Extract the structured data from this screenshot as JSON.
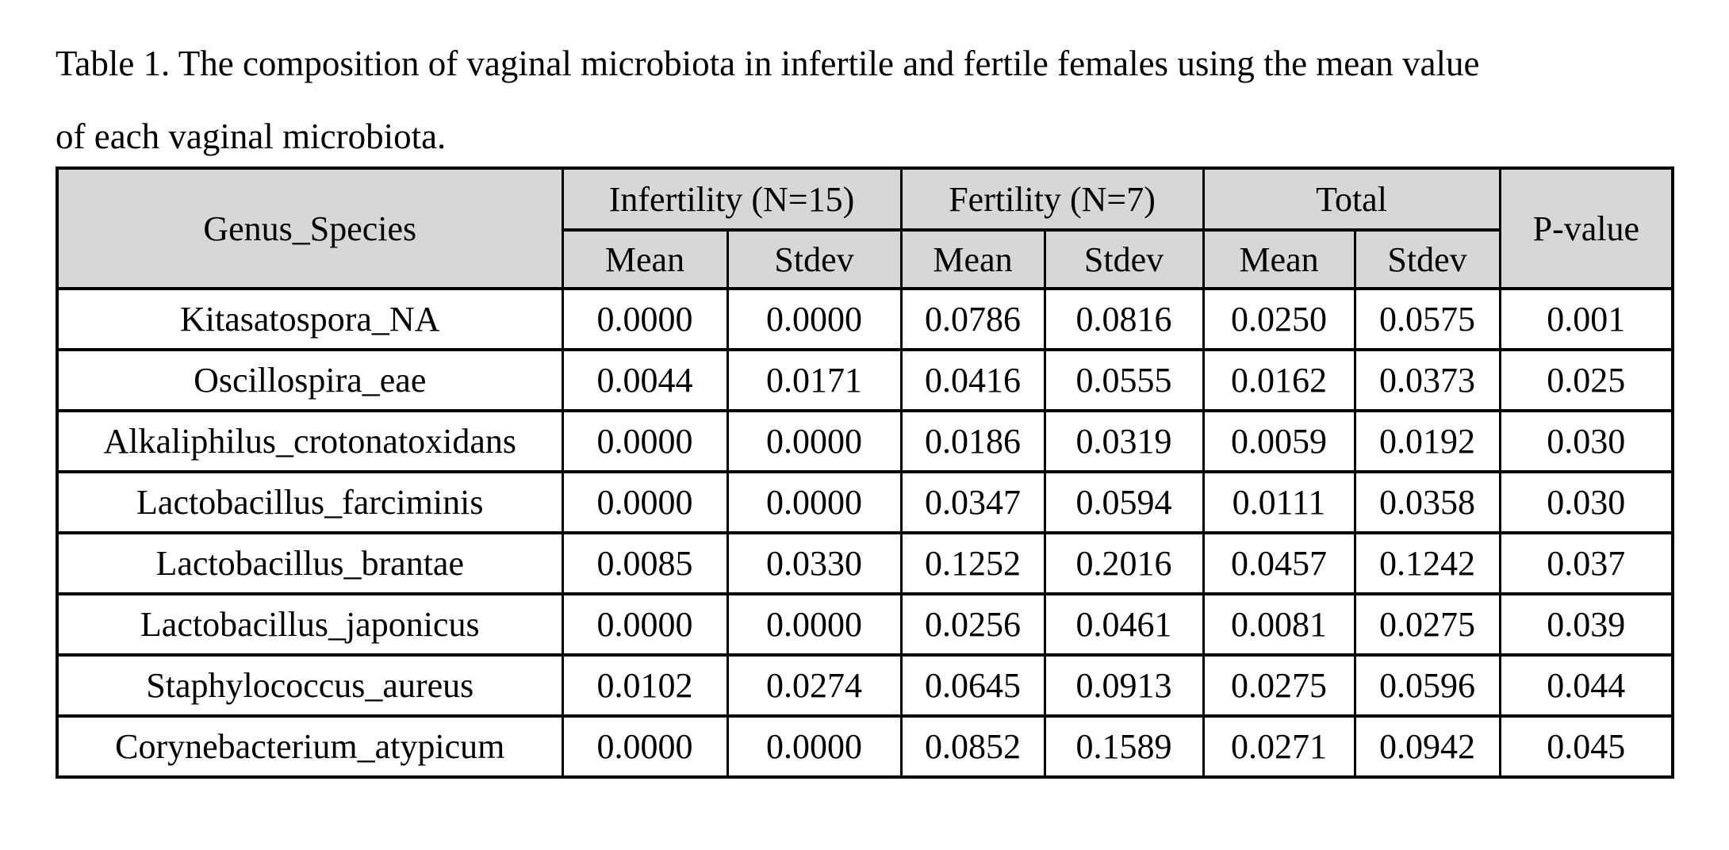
{
  "caption": {
    "line1": "Table 1. The composition of vaginal microbiota in infertile and fertile females using the mean value",
    "line2": "of each vaginal microbiota."
  },
  "table": {
    "corner_header": "Genus_Species",
    "col_groups": [
      {
        "label": "Infertility (N=15)"
      },
      {
        "label": "Fertility (N=7)"
      },
      {
        "label": "Total"
      }
    ],
    "sub_headers": [
      "Mean",
      "Stdev",
      "Mean",
      "Stdev",
      "Mean",
      "Stdev"
    ],
    "p_value_header": "P-value",
    "rows": [
      {
        "species": "Kitasatospora_NA",
        "values": [
          "0.0000",
          "0.0000",
          "0.0786",
          "0.0816",
          "0.0250",
          "0.0575",
          "0.001"
        ]
      },
      {
        "species": "Oscillospira_eae",
        "values": [
          "0.0044",
          "0.0171",
          "0.0416",
          "0.0555",
          "0.0162",
          "0.0373",
          "0.025"
        ]
      },
      {
        "species": "Alkaliphilus_crotonatoxidans",
        "values": [
          "0.0000",
          "0.0000",
          "0.0186",
          "0.0319",
          "0.0059",
          "0.0192",
          "0.030"
        ]
      },
      {
        "species": "Lactobacillus_farciminis",
        "values": [
          "0.0000",
          "0.0000",
          "0.0347",
          "0.0594",
          "0.0111",
          "0.0358",
          "0.030"
        ]
      },
      {
        "species": "Lactobacillus_brantae",
        "values": [
          "0.0085",
          "0.0330",
          "0.1252",
          "0.2016",
          "0.0457",
          "0.1242",
          "0.037"
        ]
      },
      {
        "species": "Lactobacillus_japonicus",
        "values": [
          "0.0000",
          "0.0000",
          "0.0256",
          "0.0461",
          "0.0081",
          "0.0275",
          "0.039"
        ]
      },
      {
        "species": "Staphylococcus_aureus",
        "values": [
          "0.0102",
          "0.0274",
          "0.0645",
          "0.0913",
          "0.0275",
          "0.0596",
          "0.044"
        ]
      },
      {
        "species": "Corynebacterium_atypicum",
        "values": [
          "0.0000",
          "0.0000",
          "0.0852",
          "0.1589",
          "0.0271",
          "0.0942",
          "0.045"
        ]
      }
    ]
  },
  "colors": {
    "page_bg": "#ffffff",
    "header_bg": "#d7d7d7",
    "border": "#000000",
    "text": "#000000"
  }
}
